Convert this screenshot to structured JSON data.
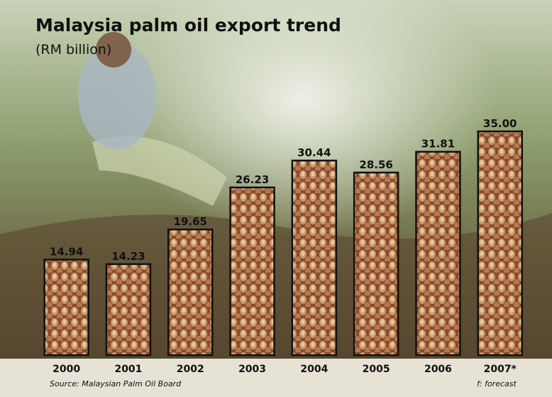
{
  "chart_data": {
    "type": "bar",
    "title": "Malaysia palm oil export trend",
    "subtitle": "(RM billion)",
    "categories": [
      "2000",
      "2001",
      "2002",
      "2003",
      "2004",
      "2005",
      "2006",
      "2007*"
    ],
    "values": [
      14.94,
      14.23,
      19.65,
      26.23,
      30.44,
      28.56,
      31.81,
      35.0
    ],
    "value_labels": [
      "14.94",
      "14.23",
      "19.65",
      "26.23",
      "30.44",
      "28.56",
      "31.81",
      "35.00"
    ],
    "color": "#8a4a2e",
    "source": "Source: Malaysian Palm Oil Board",
    "note": "f: forecast"
  }
}
